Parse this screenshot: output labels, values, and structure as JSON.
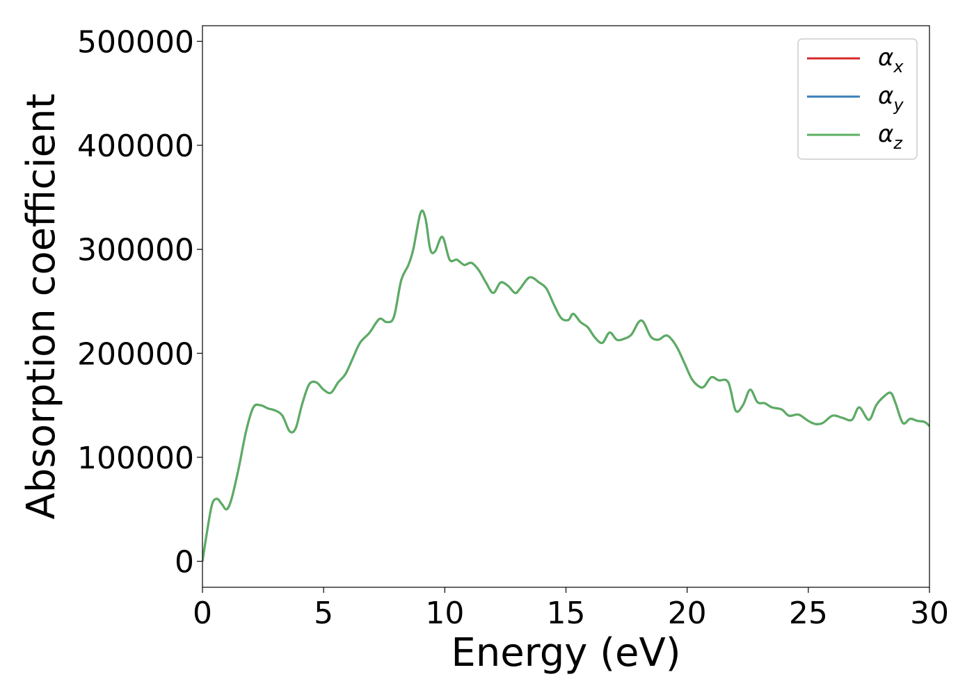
{
  "chart_data": {
    "type": "line",
    "xlabel": "Energy (eV)",
    "ylabel": "Absorption coefficient",
    "xlim": [
      0,
      30
    ],
    "ylim": [
      -25000,
      515000
    ],
    "x_ticks": [
      "0",
      "5",
      "10",
      "15",
      "20",
      "25",
      "30"
    ],
    "y_ticks": [
      "0",
      "100000",
      "200000",
      "300000",
      "400000",
      "500000"
    ],
    "grid": false,
    "legend_position": "top-right",
    "legend": [
      {
        "symbol": "α",
        "sub": "x",
        "color": "#d62728"
      },
      {
        "symbol": "α",
        "sub": "y",
        "color": "#377eb8"
      },
      {
        "symbol": "α",
        "sub": "z",
        "color": "#5aae61"
      }
    ],
    "x": [
      0,
      0.2,
      0.4,
      0.6,
      0.8,
      1.0,
      1.2,
      1.5,
      1.8,
      2.1,
      2.4,
      2.7,
      3.0,
      3.3,
      3.6,
      3.85,
      4.1,
      4.4,
      4.7,
      5.0,
      5.3,
      5.6,
      5.9,
      6.2,
      6.5,
      6.9,
      7.3,
      7.6,
      7.9,
      8.2,
      8.5,
      8.7,
      9.0,
      9.2,
      9.4,
      9.6,
      9.9,
      10.2,
      10.5,
      10.8,
      11.1,
      11.4,
      11.7,
      12.0,
      12.3,
      12.6,
      12.9,
      13.1,
      13.5,
      13.9,
      14.2,
      14.5,
      14.8,
      15.1,
      15.3,
      15.6,
      15.9,
      16.2,
      16.5,
      16.8,
      17.1,
      17.4,
      17.7,
      18.0,
      18.2,
      18.5,
      18.8,
      19.1,
      19.3,
      19.6,
      19.9,
      20.2,
      20.5,
      20.7,
      21.0,
      21.3,
      21.7,
      22.0,
      22.3,
      22.6,
      22.9,
      23.2,
      23.5,
      23.9,
      24.2,
      24.6,
      25.0,
      25.3,
      25.6,
      26.0,
      26.4,
      26.8,
      27.1,
      27.5,
      27.8,
      28.1,
      28.4,
      28.6,
      28.9,
      29.2,
      29.5,
      29.8,
      30.0
    ],
    "series": [
      {
        "values": [
          0,
          30000,
          55000,
          60000,
          55000,
          50000,
          60000,
          90000,
          125000,
          148000,
          150000,
          147000,
          145000,
          140000,
          125000,
          128000,
          150000,
          170000,
          172000,
          165000,
          162000,
          172000,
          180000,
          195000,
          210000,
          220000,
          233000,
          230000,
          235000,
          270000,
          285000,
          300000,
          335000,
          330000,
          300000,
          298000,
          312000,
          290000,
          290000,
          285000,
          287000,
          280000,
          268000,
          258000,
          268000,
          265000,
          258000,
          262000,
          273000,
          268000,
          262000,
          247000,
          234000,
          232000,
          238000,
          230000,
          225000,
          215000,
          210000,
          220000,
          213000,
          214000,
          218000,
          230000,
          230000,
          216000,
          213000,
          217000,
          215000,
          205000,
          190000,
          175000,
          168000,
          168000,
          177000,
          174000,
          172000,
          145000,
          150000,
          165000,
          153000,
          152000,
          148000,
          146000,
          140000,
          141000,
          135000,
          132000,
          133000,
          140000,
          138000,
          136000,
          148000,
          136000,
          150000,
          158000,
          162000,
          152000,
          133000,
          137000,
          135000,
          134000,
          130000
        ]
      }
    ]
  }
}
